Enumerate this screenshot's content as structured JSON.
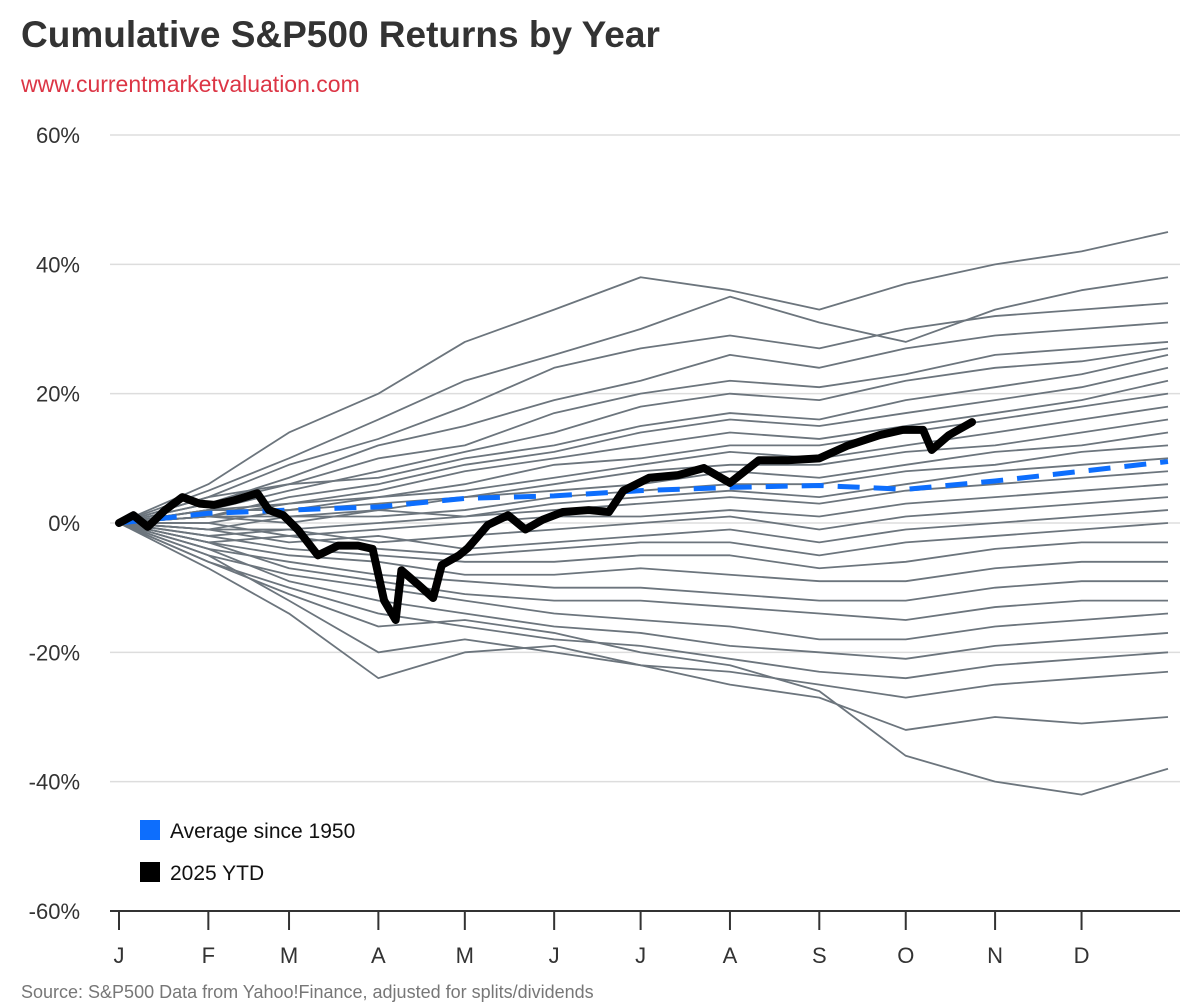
{
  "chart_data": {
    "type": "line",
    "title": "Cumulative S&P500 Returns by Year",
    "subtitle": "www.currentmarketvaluation.com",
    "source": "Source: S&P500 Data from Yahoo!Finance, adjusted for splits/dividends",
    "x_tick_labels": [
      "J",
      "F",
      "M",
      "A",
      "M",
      "J",
      "J",
      "A",
      "S",
      "O",
      "N",
      "D"
    ],
    "y_tick_labels": [
      "60%",
      "40%",
      "20%",
      "0%",
      "-20%",
      "-40%",
      "-60%"
    ],
    "y_ticks": [
      60,
      40,
      20,
      0,
      -20,
      -40,
      -60
    ],
    "ylim": [
      -60,
      60
    ],
    "y_unit": "%",
    "grid": "horizontal",
    "legend_placement": "bottom-left",
    "legend": [
      {
        "label": "Average since 1950",
        "color": "#0d6efd"
      },
      {
        "label": "2025 YTD",
        "color": "#000000"
      }
    ],
    "colors": {
      "historical": "#6c757d",
      "average": "#0d6efd",
      "ytd": "#000000",
      "grid": "#dddddd",
      "subtitle": "#dc3545"
    },
    "ytd_2025": {
      "name": "2025 YTD",
      "x": [
        "01-01",
        "01-06",
        "01-11",
        "01-17",
        "01-23",
        "01-29",
        "02-03",
        "02-10",
        "02-18",
        "02-22",
        "02-27",
        "03-04",
        "03-11",
        "03-18",
        "03-25",
        "03-30",
        "04-03",
        "04-07",
        "04-09",
        "04-15",
        "04-20",
        "04-23",
        "04-29",
        "05-02",
        "05-09",
        "05-16",
        "05-22",
        "05-28",
        "06-04",
        "06-13",
        "06-20",
        "06-25",
        "07-04",
        "07-14",
        "07-23",
        "08-01",
        "08-11",
        "08-21",
        "09-01",
        "09-11",
        "09-22",
        "09-30",
        "10-07",
        "10-10",
        "10-16",
        "10-24"
      ],
      "y": [
        0,
        1.2,
        -0.6,
        2,
        4,
        3,
        2.8,
        3.5,
        4.6,
        2,
        1.2,
        -1,
        -5,
        -3.5,
        -3.5,
        -4,
        -12,
        -15,
        -7.3,
        -9.6,
        -11.6,
        -6.5,
        -5,
        -3.9,
        -0.3,
        1.2,
        -1,
        0.5,
        1.7,
        2,
        1.7,
        5,
        7,
        7.4,
        8.5,
        6.2,
        9.7,
        9.7,
        10,
        12,
        13.6,
        14.4,
        14.4,
        11.3,
        13.6,
        15.6
      ]
    },
    "average_since_1950": {
      "name": "Average since 1950",
      "x": [
        "01-01",
        "02-01",
        "03-01",
        "04-01",
        "05-01",
        "06-01",
        "07-01",
        "08-01",
        "09-01",
        "10-01",
        "11-01",
        "12-01",
        "12-31"
      ],
      "y": [
        0,
        1.5,
        2,
        2.5,
        3.8,
        4.2,
        5,
        5.5,
        5.8,
        5.2,
        6.5,
        8,
        9.5
      ]
    },
    "historical_years_monthly": {
      "x": [
        "01-01",
        "02-01",
        "03-01",
        "04-01",
        "05-01",
        "06-01",
        "07-01",
        "08-01",
        "09-01",
        "10-01",
        "11-01",
        "12-01",
        "12-31"
      ],
      "series": [
        [
          0,
          6,
          14,
          20,
          28,
          33,
          38,
          36,
          33,
          37,
          40,
          42,
          45
        ],
        [
          0,
          5,
          10,
          16,
          22,
          26,
          30,
          35,
          31,
          28,
          33,
          36,
          38
        ],
        [
          0,
          4,
          9,
          13,
          18,
          24,
          27,
          29,
          27,
          30,
          32,
          33,
          34
        ],
        [
          0,
          3,
          7,
          12,
          15,
          19,
          22,
          26,
          24,
          27,
          29,
          30,
          31
        ],
        [
          0,
          4,
          6,
          10,
          12,
          17,
          20,
          22,
          21,
          23,
          26,
          27,
          28
        ],
        [
          0,
          2,
          5,
          8,
          11,
          14,
          18,
          20,
          19,
          22,
          24,
          25,
          27
        ],
        [
          0,
          3,
          6,
          7,
          10,
          12,
          15,
          17,
          16,
          19,
          21,
          23,
          26
        ],
        [
          0,
          1,
          4,
          6,
          9,
          11,
          14,
          16,
          15,
          17,
          19,
          21,
          24
        ],
        [
          0,
          2,
          3,
          5,
          8,
          10,
          12,
          14,
          13,
          15,
          17,
          19,
          22
        ],
        [
          0,
          1,
          3,
          4,
          6,
          9,
          10,
          12,
          12,
          14,
          16,
          18,
          20
        ],
        [
          0,
          2,
          2,
          4,
          5,
          7,
          9,
          11,
          10,
          12,
          14,
          16,
          18
        ],
        [
          0,
          0,
          2,
          3,
          4,
          6,
          8,
          9,
          9,
          11,
          12,
          14,
          16
        ],
        [
          0,
          1,
          1,
          2,
          4,
          5,
          6,
          8,
          7,
          9,
          11,
          12,
          14
        ],
        [
          0,
          -1,
          1,
          1,
          2,
          4,
          5,
          6,
          6,
          8,
          9,
          11,
          12
        ],
        [
          0,
          1,
          0,
          2,
          1,
          3,
          4,
          5,
          4,
          6,
          8,
          9,
          10
        ],
        [
          0,
          -1,
          -1,
          0,
          1,
          2,
          3,
          4,
          3,
          5,
          6,
          7,
          8
        ],
        [
          0,
          0,
          -2,
          -1,
          0,
          1,
          1,
          2,
          1,
          3,
          4,
          5,
          6
        ],
        [
          0,
          -2,
          -1,
          -3,
          -2,
          -1,
          0,
          1,
          -1,
          1,
          2,
          3,
          4
        ],
        [
          0,
          -1,
          -3,
          -2,
          -4,
          -3,
          -2,
          -1,
          -3,
          -1,
          0,
          1,
          2
        ],
        [
          0,
          -3,
          -2,
          -4,
          -5,
          -4,
          -3,
          -3,
          -5,
          -3,
          -2,
          -1,
          0
        ],
        [
          0,
          -2,
          -4,
          -5,
          -6,
          -6,
          -5,
          -5,
          -7,
          -6,
          -4,
          -3,
          -3
        ],
        [
          0,
          -3,
          -5,
          -6,
          -8,
          -8,
          -7,
          -8,
          -9,
          -9,
          -7,
          -6,
          -6
        ],
        [
          0,
          -4,
          -6,
          -8,
          -9,
          -10,
          -10,
          -11,
          -12,
          -12,
          -10,
          -9,
          -9
        ],
        [
          0,
          -3,
          -7,
          -9,
          -11,
          -12,
          -12,
          -13,
          -14,
          -15,
          -13,
          -12,
          -12
        ],
        [
          0,
          -5,
          -8,
          -10,
          -12,
          -14,
          -15,
          -16,
          -18,
          -18,
          -16,
          -15,
          -14
        ],
        [
          0,
          -4,
          -9,
          -12,
          -14,
          -16,
          -17,
          -19,
          -20,
          -21,
          -19,
          -18,
          -17
        ],
        [
          0,
          -6,
          -10,
          -14,
          -16,
          -18,
          -19,
          -21,
          -23,
          -24,
          -22,
          -21,
          -20
        ],
        [
          0,
          -5,
          -12,
          -20,
          -18,
          -20,
          -22,
          -23,
          -25,
          -27,
          -25,
          -24,
          -23
        ],
        [
          0,
          -7,
          -14,
          -24,
          -20,
          -19,
          -22,
          -25,
          -27,
          -32,
          -30,
          -31,
          -30
        ],
        [
          0,
          -6,
          -11,
          -16,
          -15,
          -17,
          -20,
          -22,
          -26,
          -36,
          -40,
          -42,
          -38
        ]
      ]
    }
  }
}
